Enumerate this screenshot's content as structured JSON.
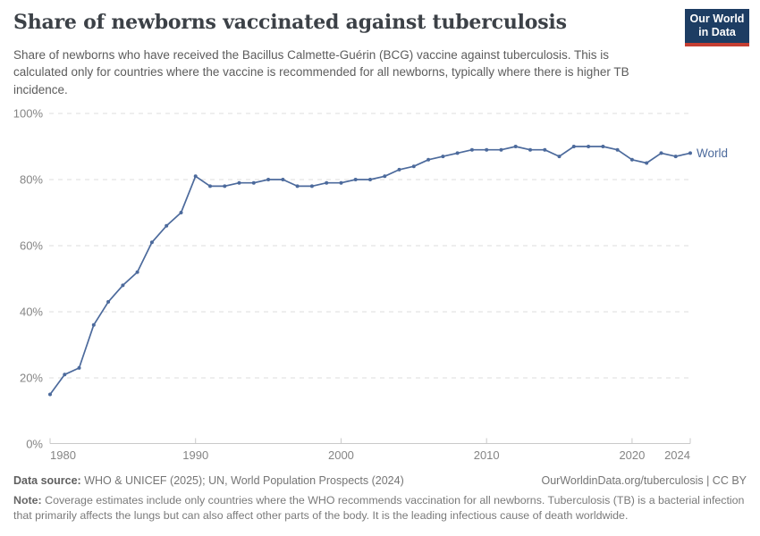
{
  "header": {
    "title": "Share of newborns vaccinated against tuberculosis",
    "subtitle": "Share of newborns who have received the Bacillus Calmette-Guérin (BCG) vaccine against tuberculosis. This is calculated only for countries where the vaccine is recommended for all newborns, typically where there is higher TB incidence.",
    "logo": {
      "line1": "Our World",
      "line2": "in Data",
      "bg_color": "#1d3d63",
      "accent_color": "#c53e32"
    }
  },
  "chart_data": {
    "type": "line",
    "title": "Share of newborns vaccinated against tuberculosis",
    "xlabel": "",
    "ylabel": "",
    "x": [
      1980,
      1981,
      1982,
      1983,
      1984,
      1985,
      1986,
      1987,
      1988,
      1989,
      1990,
      1991,
      1992,
      1993,
      1994,
      1995,
      1996,
      1997,
      1998,
      1999,
      2000,
      2001,
      2002,
      2003,
      2004,
      2005,
      2006,
      2007,
      2008,
      2009,
      2010,
      2011,
      2012,
      2013,
      2014,
      2015,
      2016,
      2017,
      2018,
      2019,
      2020,
      2021,
      2022,
      2023,
      2024
    ],
    "series": [
      {
        "name": "World",
        "color": "#4c6a9c",
        "values": [
          15,
          21,
          23,
          36,
          43,
          48,
          52,
          61,
          66,
          70,
          81,
          78,
          78,
          79,
          79,
          80,
          80,
          78,
          78,
          79,
          79,
          80,
          80,
          81,
          83,
          84,
          86,
          87,
          88,
          89,
          89,
          89,
          90,
          89,
          89,
          87,
          90,
          90,
          90,
          89,
          86,
          85,
          88,
          87,
          88
        ]
      }
    ],
    "xlim": [
      1980,
      2024
    ],
    "ylim": [
      0,
      100
    ],
    "x_ticks": [
      1980,
      1990,
      2000,
      2010,
      2020,
      2024
    ],
    "y_ticks": [
      0,
      20,
      40,
      60,
      80,
      100
    ],
    "y_suffix": "%",
    "grid": true,
    "legend_position": "end-of-line",
    "end_label": "World",
    "grid_color": "#dddddd",
    "axis_color": "#c9c9c9",
    "tick_label_color": "#858585"
  },
  "footer": {
    "datasource_label": "Data source:",
    "datasource_text": " WHO & UNICEF (2025); UN, World Population Prospects (2024)",
    "attribution": "OurWorldinData.org/tuberculosis | CC BY",
    "note_label": "Note:",
    "note_text": " Coverage estimates include only countries where the WHO recommends vaccination for all newborns. Tuberculosis (TB) is a bacterial infection that primarily affects the lungs but can also affect other parts of the body. It is the leading infectious cause of death worldwide."
  }
}
